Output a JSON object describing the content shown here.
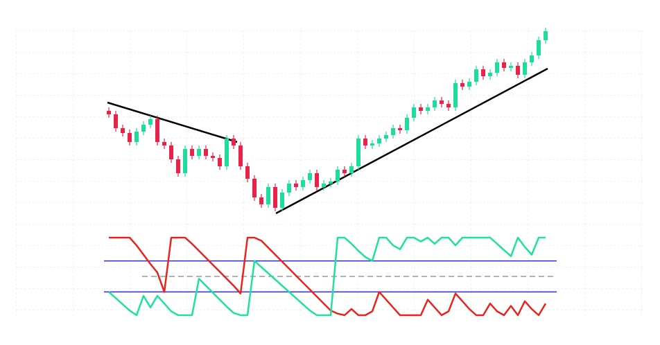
{
  "chart_data": [
    {
      "type": "candlestick",
      "ylim": [
        0,
        330
      ],
      "up_color": "#1fdc9c",
      "down_color": "#e8234a",
      "open": [
        170,
        165,
        145,
        138,
        125,
        140,
        150,
        158,
        125,
        120,
        100,
        80,
        115,
        105,
        115,
        105,
        102,
        90,
        130,
        120,
        90,
        72,
        45,
        35,
        60,
        30,
        52,
        65,
        60,
        70,
        80,
        60,
        65,
        68,
        85,
        80,
        90,
        130,
        120,
        123,
        130,
        135,
        145,
        142,
        160,
        175,
        170,
        175,
        185,
        180,
        175,
        210,
        205,
        212,
        230,
        220,
        225,
        240,
        232,
        235,
        222,
        240,
        250,
        272
      ],
      "high": [
        175,
        170,
        150,
        143,
        145,
        155,
        163,
        163,
        130,
        125,
        105,
        120,
        120,
        120,
        120,
        110,
        107,
        135,
        135,
        125,
        95,
        77,
        50,
        65,
        65,
        57,
        70,
        70,
        75,
        85,
        85,
        70,
        73,
        90,
        90,
        95,
        135,
        135,
        128,
        135,
        140,
        150,
        150,
        165,
        180,
        180,
        180,
        190,
        190,
        185,
        215,
        215,
        217,
        235,
        235,
        230,
        245,
        245,
        240,
        240,
        245,
        255,
        277,
        290
      ],
      "low": [
        160,
        140,
        133,
        120,
        120,
        135,
        145,
        120,
        115,
        95,
        75,
        75,
        100,
        100,
        100,
        97,
        85,
        85,
        115,
        85,
        67,
        40,
        30,
        30,
        25,
        25,
        47,
        55,
        55,
        65,
        55,
        55,
        60,
        63,
        75,
        75,
        85,
        115,
        115,
        118,
        125,
        130,
        137,
        137,
        155,
        165,
        165,
        170,
        175,
        170,
        170,
        200,
        200,
        207,
        215,
        215,
        220,
        227,
        227,
        217,
        217,
        235,
        245,
        267
      ],
      "close": [
        165,
        145,
        138,
        125,
        140,
        150,
        158,
        125,
        120,
        100,
        80,
        115,
        105,
        115,
        105,
        102,
        90,
        130,
        120,
        90,
        72,
        45,
        35,
        60,
        30,
        52,
        65,
        60,
        70,
        80,
        60,
        65,
        68,
        85,
        80,
        90,
        130,
        120,
        123,
        130,
        135,
        145,
        142,
        160,
        175,
        170,
        175,
        185,
        180,
        175,
        210,
        205,
        212,
        230,
        220,
        225,
        240,
        232,
        235,
        222,
        240,
        250,
        272,
        285
      ],
      "trendlines": [
        {
          "from": [
            -0.2,
            182
          ],
          "to": [
            18.5,
            125
          ]
        },
        {
          "from": [
            24.1,
            22
          ],
          "to": [
            63.3,
            231
          ]
        }
      ],
      "trendline_color": "#000000"
    },
    {
      "type": "line",
      "ylim": [
        0,
        100
      ],
      "levels": [
        70,
        30
      ],
      "level_color": "#2a2ad8",
      "midline": 50,
      "midline_color": "#999999",
      "series": [
        {
          "color": "#e8231e",
          "values": [
            100,
            100,
            100,
            100,
            90,
            78,
            66,
            55,
            30,
            100,
            100,
            100,
            92,
            83,
            74,
            65,
            56,
            47,
            38,
            28,
            100,
            100,
            96,
            87,
            78,
            69,
            60,
            51,
            42,
            33,
            24,
            15,
            6,
            2,
            0,
            8,
            0,
            0,
            5,
            30,
            20,
            10,
            0,
            0,
            0,
            0,
            20,
            10,
            0,
            5,
            28,
            18,
            8,
            0,
            0,
            15,
            5,
            0,
            12,
            0,
            18,
            8,
            0,
            15
          ]
        },
        {
          "color": "#1fe0a0",
          "values": [
            30,
            22,
            14,
            6,
            0,
            25,
            10,
            25,
            15,
            5,
            0,
            0,
            0,
            47,
            38,
            29,
            20,
            11,
            3,
            0,
            0,
            70,
            62,
            54,
            46,
            38,
            30,
            22,
            14,
            6,
            0,
            0,
            0,
            100,
            100,
            92,
            83,
            75,
            70,
            100,
            100,
            90,
            85,
            100,
            100,
            95,
            100,
            92,
            100,
            100,
            90,
            100,
            100,
            100,
            100,
            100,
            92,
            84,
            76,
            100,
            88,
            78,
            100,
            100
          ]
        }
      ]
    }
  ]
}
